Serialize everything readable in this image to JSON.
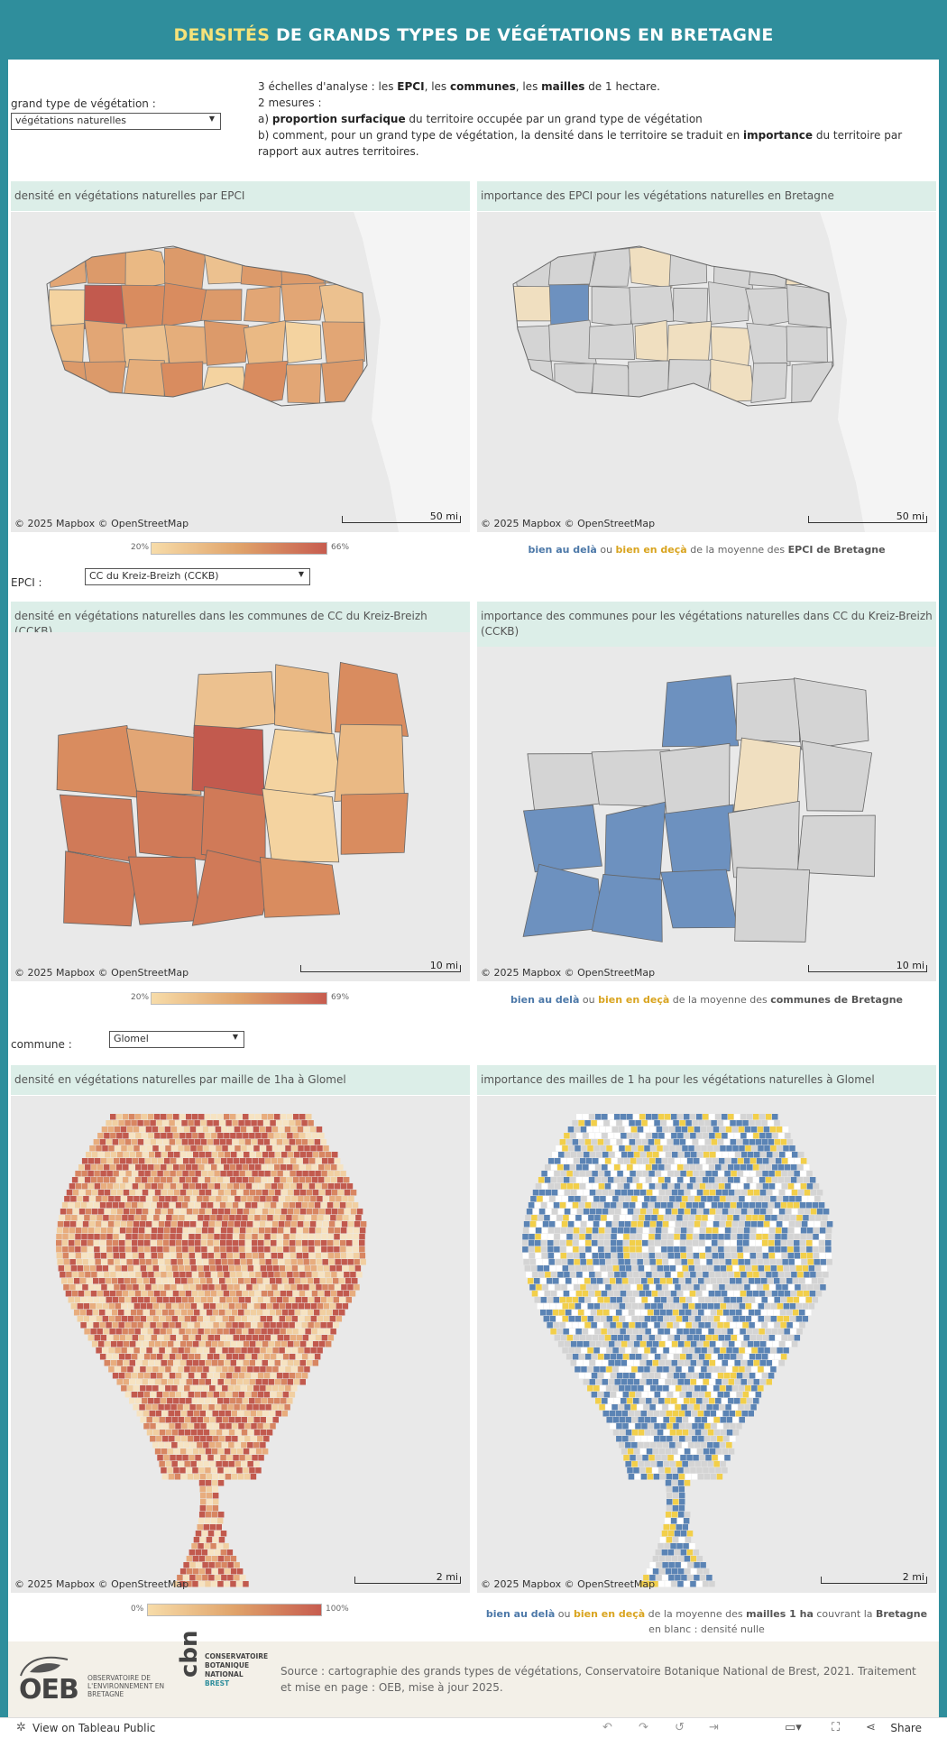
{
  "header": {
    "title_highlight": "DENSITÉS",
    "title_rest": " DE GRANDS TYPES DE VÉGÉTATIONS EN BRETAGNE"
  },
  "controls": {
    "veg_label": "grand type de végétation :",
    "veg_value": "végétations naturelles",
    "epci_label": "EPCI :",
    "epci_value": "CC du Kreiz-Breizh (CCKB)",
    "commune_label": "commune :",
    "commune_value": "Glomel"
  },
  "description": {
    "line1_a": "3 échelles d'analyse : les ",
    "line1_epci": "EPCI",
    "line1_b": ", les ",
    "line1_communes": "communes",
    "line1_c": ", les ",
    "line1_mailles": "mailles",
    "line1_d": " de 1 hectare.",
    "line2": " 2 mesures :",
    "line3_a": "a) ",
    "line3_b": "proportion surfacique",
    "line3_c": " du territoire occupée par un grand type de végétation",
    "line4_a": "b) comment, pour un grand type de végétation, la densité dans le territoire se traduit en ",
    "line4_b": "importance",
    "line4_c": " du territoire par rapport aux autres territoires."
  },
  "panels": {
    "p1_title": "densité en végétations naturelles par EPCI",
    "p2_title": "importance des EPCI pour les végétations naturelles en Bretagne",
    "p3_title": "densité en végétations naturelles dans les communes de  CC du Kreiz-Breizh (CCKB)",
    "p4_title": "importance des communes pour les végétations naturelles dans CC du Kreiz-Breizh (CCKB)",
    "p5_title": "densité en végétations naturelles par maille de 1ha à Glomel",
    "p6_title": "importance des mailles de 1 ha pour les végétations naturelles à Glomel"
  },
  "map": {
    "attribution": "© 2025 Mapbox  © OpenStreetMap",
    "scale_row1": "50 mi",
    "scale_row2": "10 mi",
    "scale_row3": "2 mi"
  },
  "legends": {
    "row1_min": "20%",
    "row1_max": "66%",
    "row2_min": "20%",
    "row2_max": "69%",
    "row3_min": "0%",
    "row3_max": "100%",
    "above": "bien au delà",
    "or": "  ou  ",
    "below": "bien en deçà",
    "row1_mid": "  de la moyenne des ",
    "row1_end": "EPCI de Bretagne",
    "row2_mid": "  de la moyenne des ",
    "row2_end": "communes de Bretagne",
    "row3_mid": " de la moyenne des ",
    "row3_mailles": "mailles 1 ha",
    "row3_c": " couvrant la ",
    "row3_end": "Bretagne",
    "row3_white": "en blanc : densité nulle"
  },
  "footer": {
    "oeb_abbr": "OEB",
    "oeb_text": "OBSERVATOIRE DE L'ENVIRONNEMENT EN BRETAGNE",
    "cbn_abbr": "cbn",
    "cbn_text1": "CONSERVATOIRE",
    "cbn_text2": "BOTANIQUE",
    "cbn_text3": "NATIONAL",
    "cbn_text4": "BREST",
    "source": "Source : cartographie des grands types de végétations, Conservatoire Botanique National de Brest, 2021. Traitement et mise en page : OEB, mise à jour 2025."
  },
  "bottombar": {
    "tableau": "View on Tableau Public",
    "share": "Share"
  },
  "colors": {
    "teal": "#2f8e9c",
    "blue": "#4c78a8",
    "yellow": "#f2cf4a",
    "grey": "#d4d4d4"
  }
}
